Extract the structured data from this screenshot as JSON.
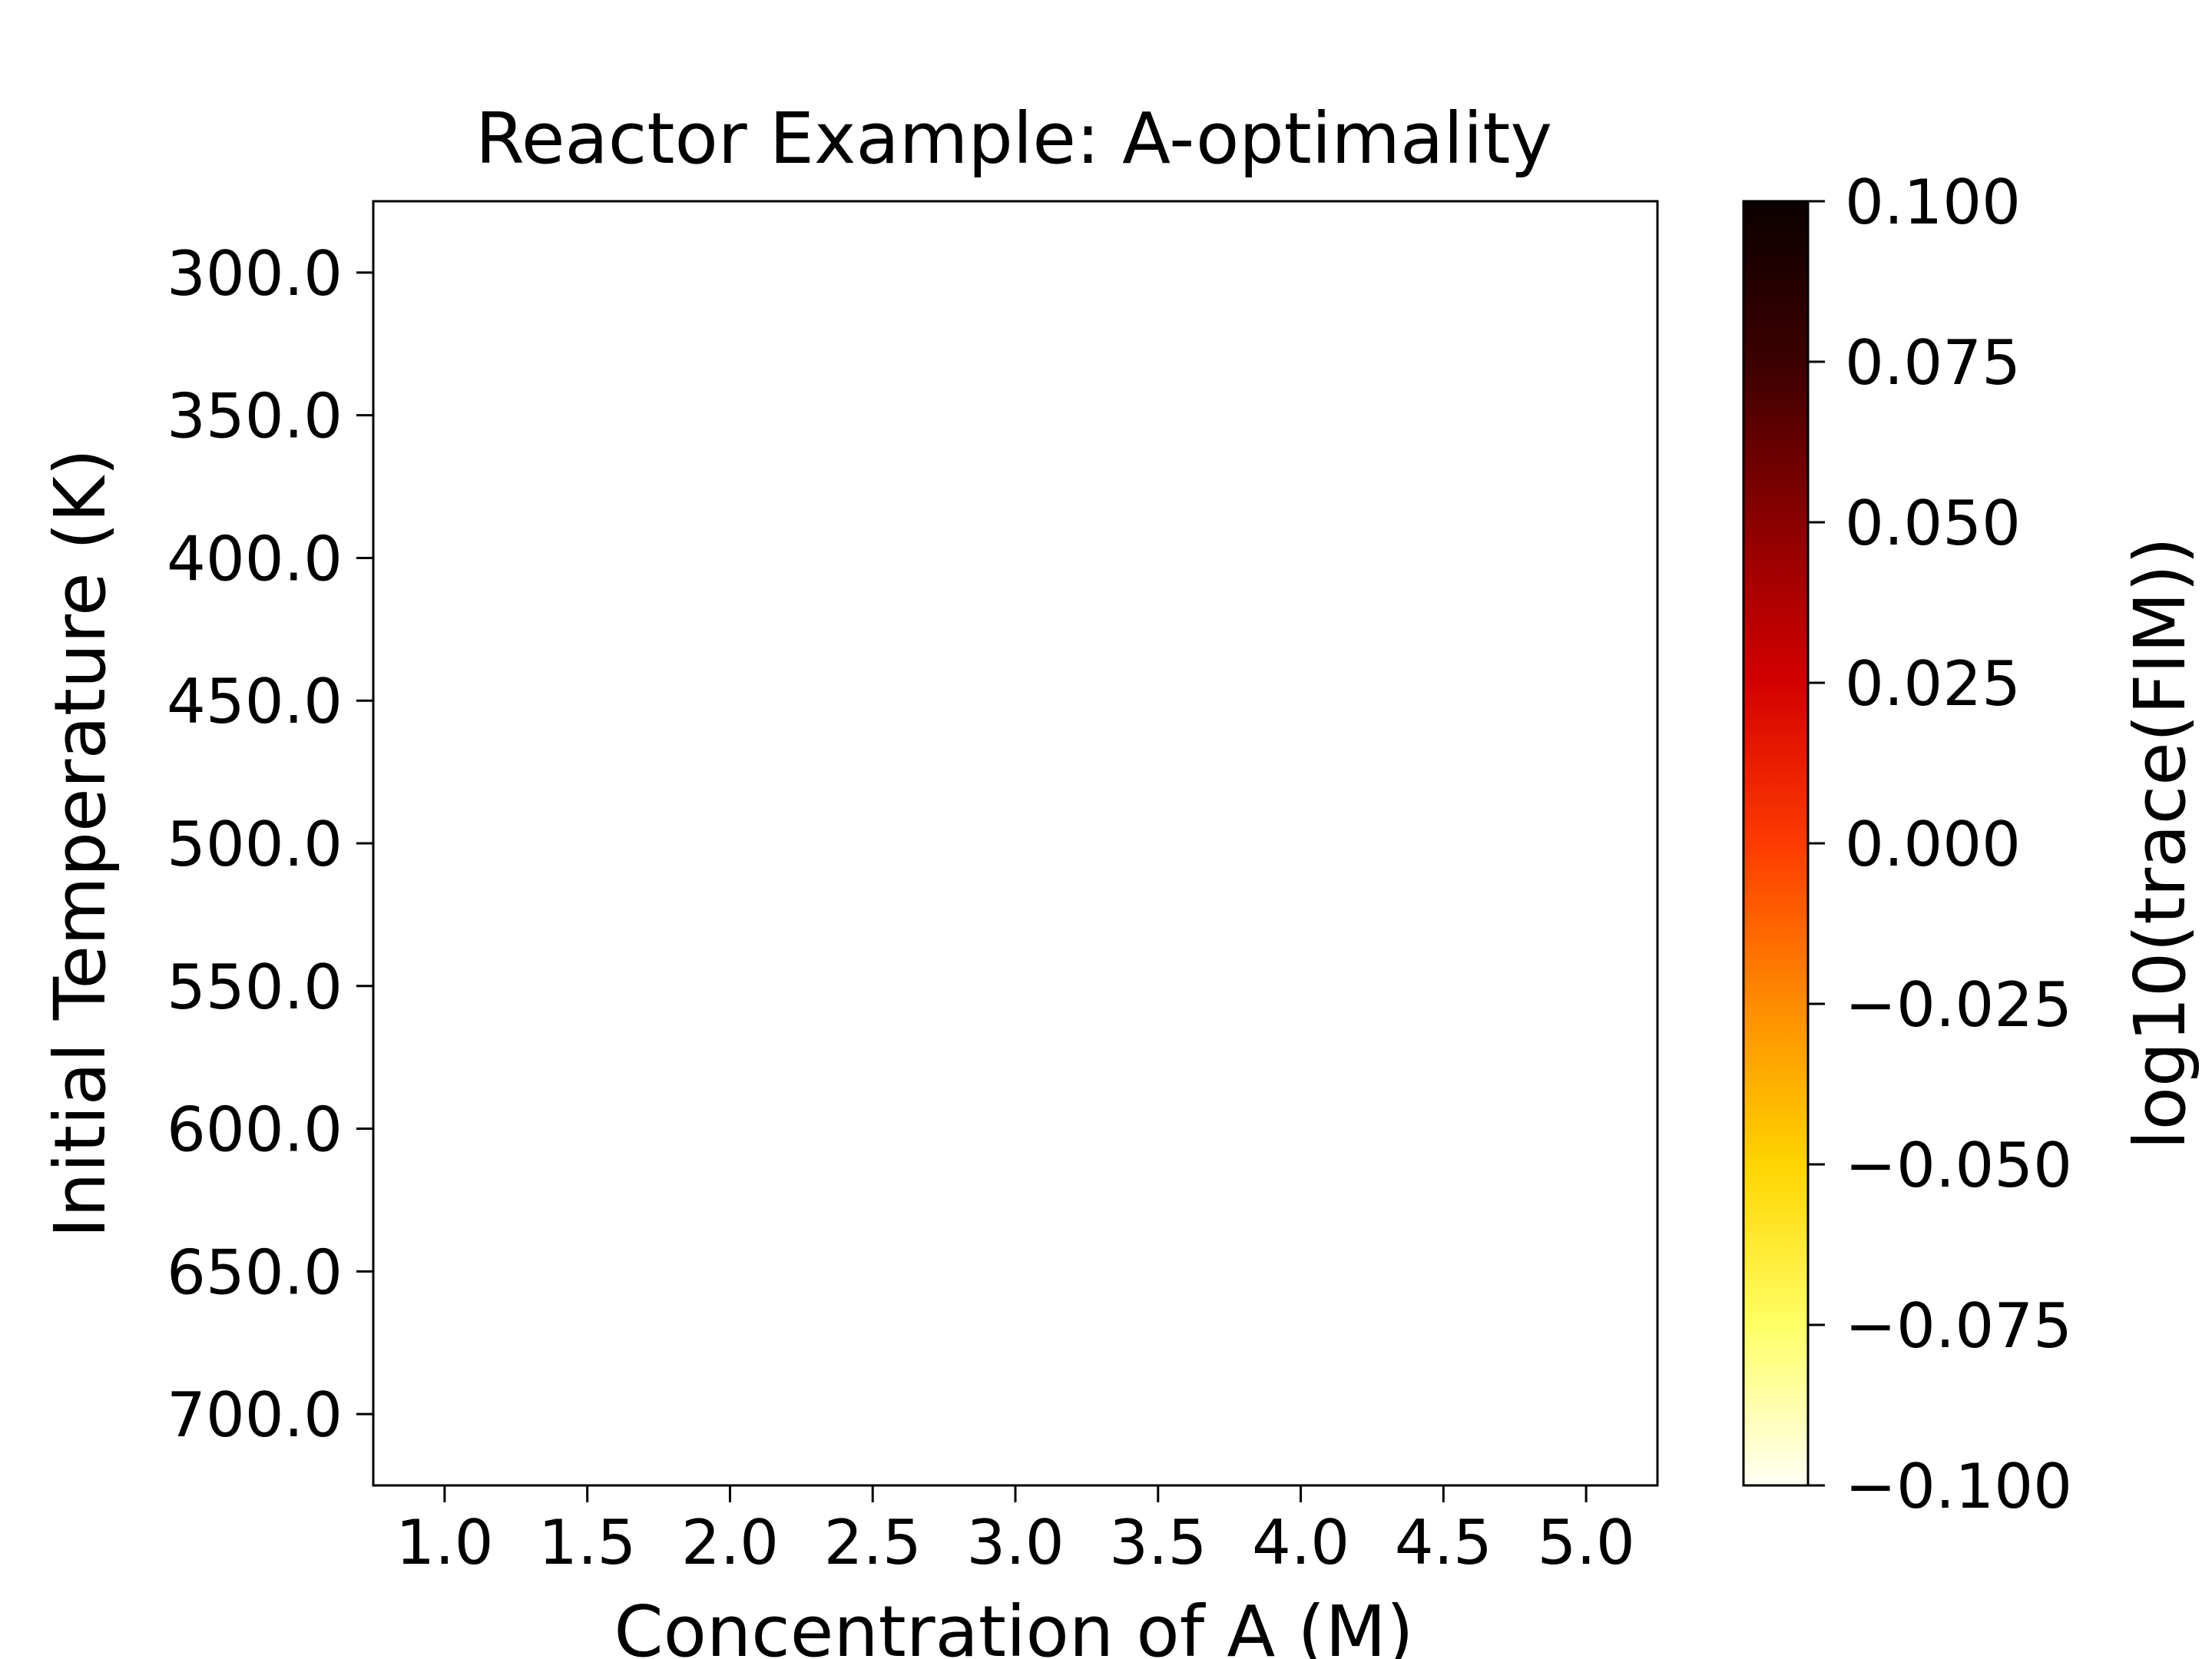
{
  "chart_data": {
    "type": "heatmap",
    "title": "Reactor Example: A-optimality",
    "xlabel": "Concentration of A (M)",
    "ylabel": "Initial Temperature (K)",
    "x_ticks": [
      "1.0",
      "1.5",
      "2.0",
      "2.5",
      "3.0",
      "3.5",
      "4.0",
      "4.5",
      "5.0"
    ],
    "x_values": [
      1.0,
      1.5,
      2.0,
      2.5,
      3.0,
      3.5,
      4.0,
      4.5,
      5.0
    ],
    "y_ticks": [
      "300.0",
      "350.0",
      "400.0",
      "450.0",
      "500.0",
      "550.0",
      "600.0",
      "650.0",
      "700.0"
    ],
    "y_values": [
      300.0,
      350.0,
      400.0,
      450.0,
      500.0,
      550.0,
      600.0,
      650.0,
      700.0
    ],
    "xlim": [
      0.75,
      5.25
    ],
    "ylim": [
      725.0,
      275.0
    ],
    "y_axis_inverted": true,
    "grid": false,
    "cells": [],
    "colorbar": {
      "label": "log10(trace(FIM))",
      "colormap": "hot_r",
      "range": [
        -0.1,
        0.1
      ],
      "ticks": [
        "0.100",
        "0.075",
        "0.050",
        "0.025",
        "0.000",
        "−0.025",
        "−0.050",
        "−0.075",
        "−0.100"
      ],
      "tick_values": [
        0.1,
        0.075,
        0.05,
        0.025,
        0.0,
        -0.025,
        -0.05,
        -0.075,
        -0.1
      ],
      "gradient_colors": [
        "#fffff5",
        "#ffff66",
        "#ffd400",
        "#ff8c00",
        "#ff3a00",
        "#d40000",
        "#8b0000",
        "#3c0000",
        "#0b0000"
      ]
    }
  }
}
